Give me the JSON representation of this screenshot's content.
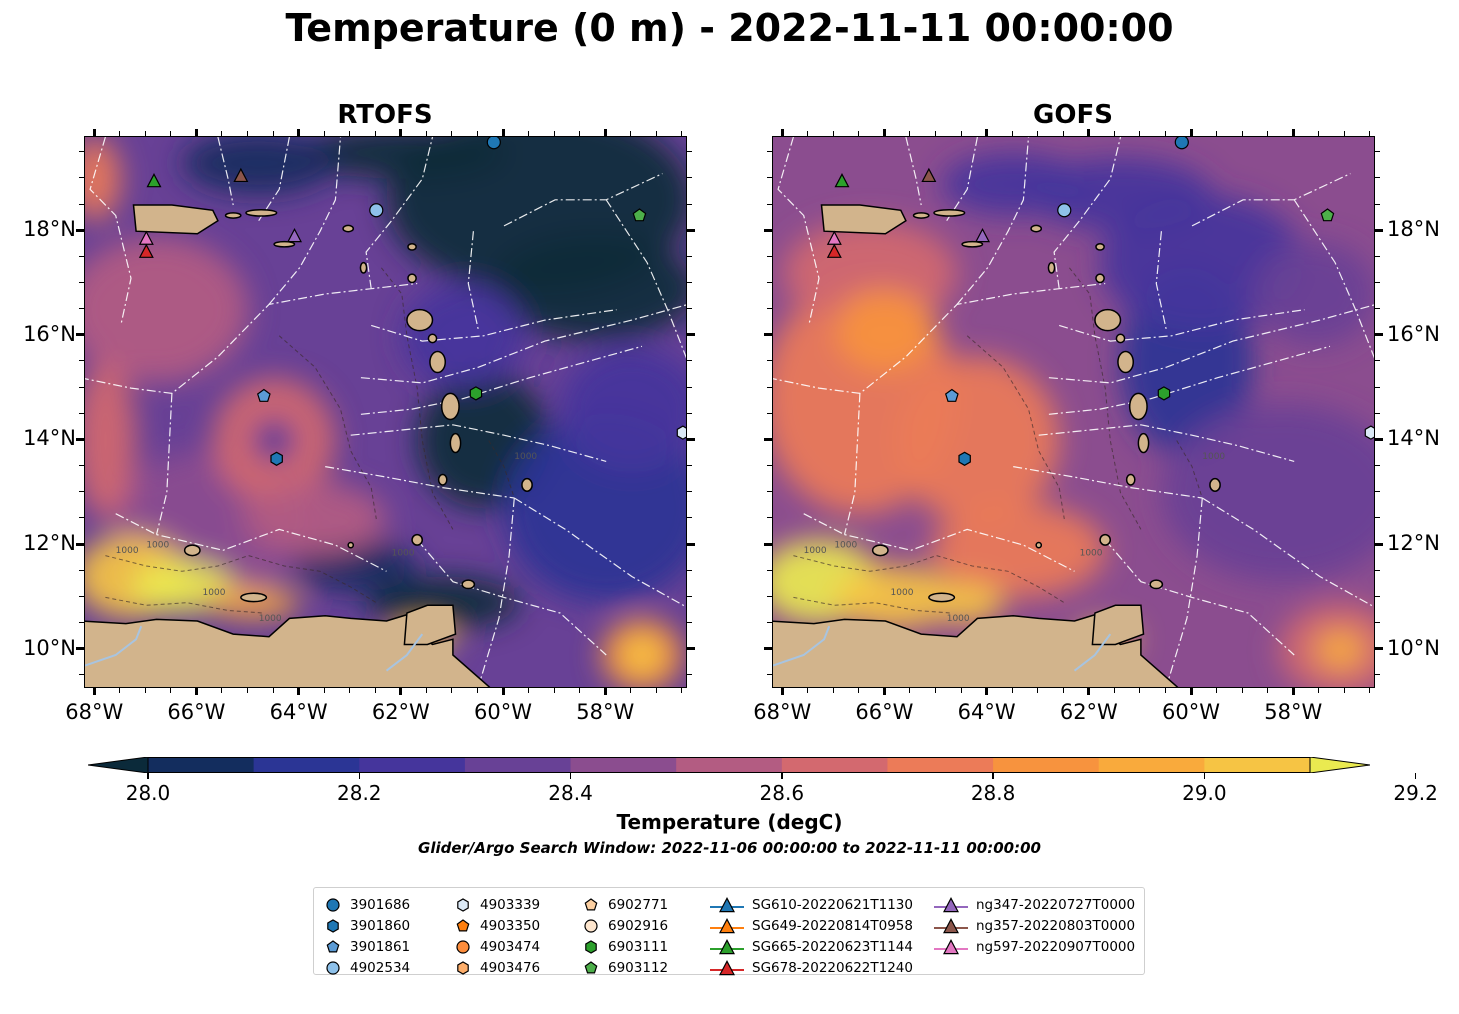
{
  "title": "Temperature (0 m) - 2022-11-11 00:00:00",
  "panels": [
    {
      "id": "rtofs",
      "title": "RTOFS"
    },
    {
      "id": "gofs",
      "title": "GOFS"
    }
  ],
  "map": {
    "lon_range": [
      -68.2,
      -56.4
    ],
    "lat_range": [
      9.25,
      19.8
    ],
    "lon_ticks": [
      "68°W",
      "66°W",
      "64°W",
      "62°W",
      "60°W",
      "58°W"
    ],
    "lat_ticks": [
      "18°N",
      "16°N",
      "14°N",
      "12°N",
      "10°N"
    ],
    "contour_labels": [
      "1000",
      "1000",
      "1000",
      "1000",
      "1000",
      "1000"
    ],
    "land_color": "#d2b48c",
    "river_color": "#a8c4e0"
  },
  "colorbar": {
    "label": "Temperature (degC)",
    "ticks": [
      "28.0",
      "28.2",
      "28.4",
      "28.6",
      "28.8",
      "29.0",
      "29.2"
    ],
    "vmin": 27.9,
    "vmax": 29.3,
    "colors": [
      "#0b2a3a",
      "#132d5e",
      "#2b3595",
      "#45359c",
      "#684196",
      "#8b4d8f",
      "#b35c82",
      "#d3696f",
      "#ec7b58",
      "#f7933e",
      "#f9aa3c",
      "#f6c444",
      "#eaea50"
    ]
  },
  "search_window": "Glider/Argo Search Window: 2022-11-06 00:00:00 to 2022-11-11 00:00:00",
  "legend": {
    "columns": [
      [
        {
          "label": "3901686",
          "marker": "circle",
          "color": "#1f77b4"
        },
        {
          "label": "3901860",
          "marker": "hexagon",
          "color": "#1f77b4"
        },
        {
          "label": "3901861",
          "marker": "pentagon",
          "color": "#5b9bd5"
        },
        {
          "label": "4902534",
          "marker": "circle",
          "color": "#8ec1ea"
        }
      ],
      [
        {
          "label": "4903339",
          "marker": "hexagon",
          "color": "#dbe9f6"
        },
        {
          "label": "4903350",
          "marker": "pentagon",
          "color": "#ff7f0e"
        },
        {
          "label": "4903474",
          "marker": "circle",
          "color": "#fd8d3c"
        },
        {
          "label": "4903476",
          "marker": "hexagon",
          "color": "#fdae6b"
        }
      ],
      [
        {
          "label": "6902771",
          "marker": "pentagon",
          "color": "#fdd0a2"
        },
        {
          "label": "6902916",
          "marker": "circle",
          "color": "#fee6ce"
        },
        {
          "label": "6903111",
          "marker": "hexagon",
          "color": "#2ca02c"
        },
        {
          "label": "6903112",
          "marker": "pentagon",
          "color": "#4daf4a"
        }
      ],
      [
        {
          "label": "SG610-20220621T1130",
          "marker": "triangle-line",
          "color": "#1f77b4"
        },
        {
          "label": "SG649-20220814T0958",
          "marker": "triangle-line",
          "color": "#ff7f0e"
        },
        {
          "label": "SG665-20220623T1144",
          "marker": "triangle-line",
          "color": "#2ca02c"
        },
        {
          "label": "SG678-20220622T1240",
          "marker": "triangle-line",
          "color": "#d62728"
        }
      ],
      [
        {
          "label": "ng347-20220727T0000",
          "marker": "triangle-line",
          "color": "#9467bd"
        },
        {
          "label": "ng357-20220803T0000",
          "marker": "triangle-line",
          "color": "#8c564b"
        },
        {
          "label": "ng597-20220907T0000",
          "marker": "triangle-line",
          "color": "#e377c2"
        }
      ]
    ]
  },
  "observations": [
    {
      "id": "3901686",
      "marker": "circle",
      "color": "#1f77b4",
      "lon": -60.2,
      "lat": 19.7
    },
    {
      "id": "4902534",
      "marker": "circle",
      "color": "#8ec1ea",
      "lon": -62.5,
      "lat": 18.4
    },
    {
      "id": "3901861",
      "marker": "pentagon",
      "color": "#5b9bd5",
      "lon": -64.7,
      "lat": 14.85
    },
    {
      "id": "3901860",
      "marker": "hexagon",
      "color": "#1f77b4",
      "lon": -64.45,
      "lat": 13.65
    },
    {
      "id": "6903111",
      "marker": "hexagon",
      "color": "#2ca02c",
      "lon": -60.55,
      "lat": 14.9
    },
    {
      "id": "6903112",
      "marker": "pentagon",
      "color": "#4daf4a",
      "lon": -57.35,
      "lat": 18.3
    },
    {
      "id": "4903339",
      "marker": "hexagon",
      "color": "#dbe9f6",
      "lon": -56.5,
      "lat": 14.15
    },
    {
      "id": "SG665-20220623T1144",
      "marker": "triangle",
      "color": "#2ca02c",
      "lon": -66.85,
      "lat": 18.95
    },
    {
      "id": "ng357-20220803T0000",
      "marker": "triangle",
      "color": "#8c564b",
      "lon": -65.15,
      "lat": 19.05
    },
    {
      "id": "ng347-20220727T0000",
      "marker": "triangle",
      "color": "#9467bd",
      "lon": -64.1,
      "lat": 17.9
    },
    {
      "id": "ng597-20220907T0000",
      "marker": "triangle",
      "color": "#e377c2",
      "lon": -67.0,
      "lat": 17.85
    },
    {
      "id": "SG678-20220622T1240",
      "marker": "triangle",
      "color": "#d62728",
      "lon": -67.0,
      "lat": 17.6
    }
  ]
}
